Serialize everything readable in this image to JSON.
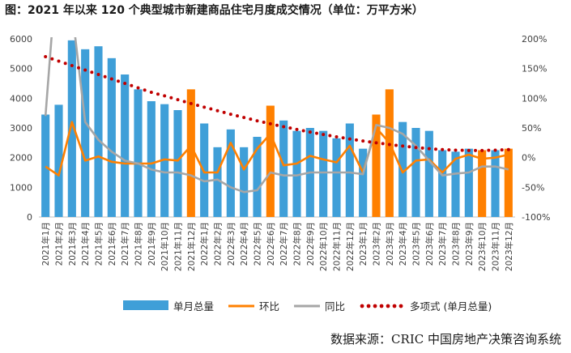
{
  "title": "图：2021 年以来 120 个典型城市新建商品住宅月度成交情况（单位：万平方米）",
  "source": "数据来源：CRIC 中国房地产决策咨询系统",
  "chart_data": {
    "type": "bar",
    "title": "图：2021 年以来 120 个典型城市新建商品住宅月度成交情况（单位：万平方米）",
    "categories": [
      "2021年1月",
      "2021年2月",
      "2021年3月",
      "2021年4月",
      "2021年5月",
      "2021年6月",
      "2021年7月",
      "2021年8月",
      "2021年9月",
      "2021年10月",
      "2021年11月",
      "2021年12月",
      "2022年1月",
      "2022年2月",
      "2022年3月",
      "2022年4月",
      "2022年5月",
      "2022年6月",
      "2022年7月",
      "2022年8月",
      "2022年9月",
      "2022年10月",
      "2022年11月",
      "2022年12月",
      "2023年1月",
      "2023年2月",
      "2023年3月",
      "2023年4月",
      "2023年5月",
      "2023年6月",
      "2023年7月",
      "2023年8月",
      "2023年9月",
      "2023年10月",
      "2023年11月",
      "2023年12月"
    ],
    "highlight_indices": [
      11,
      17,
      25,
      26,
      33,
      35
    ],
    "series": [
      {
        "name": "单月总量",
        "axis": "left",
        "type": "bar",
        "color": "#3f9fd8",
        "highlight_color": "#ff8000",
        "values": [
          3450,
          3780,
          5950,
          5650,
          5750,
          5350,
          4800,
          4300,
          3900,
          3800,
          3600,
          4300,
          3150,
          2350,
          2950,
          2350,
          2700,
          3750,
          3250,
          2900,
          3000,
          2900,
          2650,
          3150,
          2300,
          3450,
          4300,
          3200,
          3000,
          2900,
          2250,
          2200,
          2300,
          2250,
          2250,
          2300
        ]
      },
      {
        "name": "环比",
        "axis": "right",
        "type": "line",
        "color": "#ff8000",
        "values": [
          -15,
          -30,
          60,
          -5,
          2,
          -7,
          -10,
          -10,
          -10,
          -3,
          -5,
          20,
          -25,
          -25,
          25,
          -20,
          15,
          40,
          -13,
          -10,
          3,
          -3,
          -8,
          20,
          -25,
          50,
          25,
          -25,
          -5,
          -3,
          -25,
          -2,
          5,
          -2,
          0,
          5
        ]
      },
      {
        "name": "同比",
        "axis": "right",
        "type": "line",
        "color": "#a6a6a6",
        "values": [
          70,
          360,
          250,
          60,
          30,
          10,
          -5,
          -10,
          -20,
          -25,
          -25,
          -30,
          -40,
          -37,
          -50,
          -58,
          -55,
          -25,
          -30,
          -30,
          -25,
          -25,
          -25,
          -25,
          -28,
          55,
          50,
          40,
          20,
          -5,
          -30,
          -27,
          -25,
          -15,
          -15,
          -20
        ]
      },
      {
        "name": "多项式 (单月总量)",
        "axis": "left",
        "type": "trendline",
        "color": "#c00000",
        "values": [
          5400,
          5250,
          5100,
          4950,
          4800,
          4650,
          4500,
          4350,
          4200,
          4080,
          3950,
          3820,
          3700,
          3580,
          3460,
          3350,
          3240,
          3140,
          3040,
          2950,
          2860,
          2780,
          2700,
          2630,
          2560,
          2500,
          2440,
          2390,
          2340,
          2300,
          2270,
          2250,
          2240,
          2240,
          2250,
          2270
        ]
      }
    ],
    "y_left": {
      "lim": [
        0,
        6000
      ],
      "ticks": [
        "0",
        "1000",
        "2000",
        "3000",
        "4000",
        "5000",
        "6000"
      ]
    },
    "y_right": {
      "lim": [
        -100,
        200
      ],
      "ticks": [
        "-100%",
        "-50%",
        "0%",
        "50%",
        "100%",
        "150%",
        "200%"
      ]
    },
    "legend_position": "bottom",
    "grid": false
  }
}
